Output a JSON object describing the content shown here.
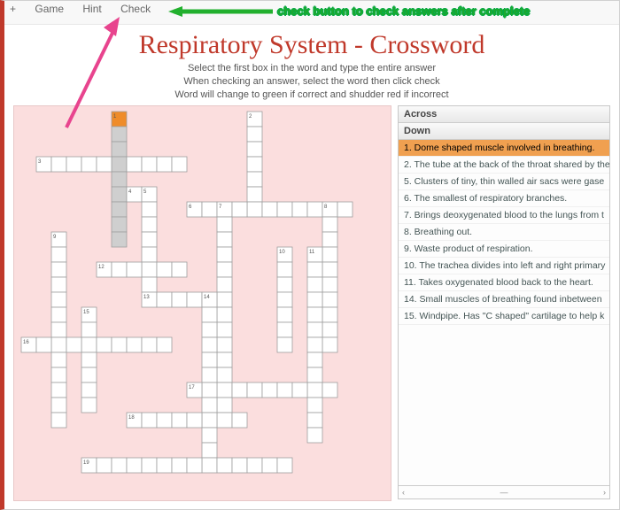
{
  "menu": {
    "plus": "+",
    "game": "Game",
    "hint": "Hint",
    "check": "Check"
  },
  "title": "Respiratory System - Crossword",
  "instructions": [
    "Select the first box in the word and type the entire answer",
    "When checking an answer, select the word then click check",
    "Word will change to green if correct and shudder red if incorrect"
  ],
  "annotation": "check button to check answers after complete",
  "clue_headers": {
    "across": "Across",
    "down": "Down"
  },
  "clues": [
    {
      "n": 1,
      "text": "Dome shaped muscle involved in breathing.",
      "selected": true
    },
    {
      "n": 2,
      "text": "The tube at the back of the throat shared by the"
    },
    {
      "n": 5,
      "text": "Clusters of tiny, thin walled air sacs were gase"
    },
    {
      "n": 6,
      "text": "The smallest of respiratory branches."
    },
    {
      "n": 7,
      "text": "Brings deoxygenated blood to the lungs from t"
    },
    {
      "n": 8,
      "text": "Breathing out."
    },
    {
      "n": 9,
      "text": "Waste product of respiration."
    },
    {
      "n": 10,
      "text": "The trachea divides into left and right primary"
    },
    {
      "n": 11,
      "text": "Takes oxygenated blood back to the heart."
    },
    {
      "n": 14,
      "text": "Small muscles of breathing found inbetween"
    },
    {
      "n": 15,
      "text": "Windpipe. Has \"C shaped\" cartilage to help k"
    }
  ],
  "grid": {
    "cell": 17,
    "colors": {
      "cell_fill": "#ffffff",
      "cell_stroke": "#9e9e9e",
      "cell_selected": "#ef8c2a",
      "cell_shaded": "#cfcfcf",
      "number_color": "#555555"
    },
    "entries": [
      {
        "n": 1,
        "r": 0,
        "c": 6,
        "dir": "D",
        "len": 9,
        "first_selected": true,
        "shaded": true
      },
      {
        "n": 2,
        "r": 0,
        "c": 15,
        "dir": "D",
        "len": 7
      },
      {
        "n": 3,
        "r": 3,
        "c": 1,
        "dir": "A",
        "len": 10
      },
      {
        "n": 4,
        "r": 5,
        "c": 7,
        "dir": "A",
        "len": 2
      },
      {
        "n": 5,
        "r": 5,
        "c": 8,
        "dir": "D",
        "len": 7
      },
      {
        "n": 6,
        "r": 6,
        "c": 11,
        "dir": "A",
        "len": 11
      },
      {
        "n": 7,
        "r": 6,
        "c": 13,
        "dir": "D",
        "len": 15
      },
      {
        "n": 8,
        "r": 6,
        "c": 20,
        "dir": "D",
        "len": 10
      },
      {
        "n": 9,
        "r": 8,
        "c": 2,
        "dir": "D",
        "len": 13
      },
      {
        "n": 10,
        "r": 9,
        "c": 17,
        "dir": "D",
        "len": 7
      },
      {
        "n": 11,
        "r": 9,
        "c": 19,
        "dir": "D",
        "len": 13
      },
      {
        "n": 12,
        "r": 10,
        "c": 5,
        "dir": "A",
        "len": 6
      },
      {
        "n": 13,
        "r": 12,
        "c": 8,
        "dir": "A",
        "len": 4
      },
      {
        "n": 14,
        "r": 12,
        "c": 12,
        "dir": "D",
        "len": 12
      },
      {
        "n": 15,
        "r": 13,
        "c": 4,
        "dir": "D",
        "len": 7
      },
      {
        "n": 16,
        "r": 15,
        "c": 0,
        "dir": "A",
        "len": 10
      },
      {
        "n": 17,
        "r": 18,
        "c": 11,
        "dir": "A",
        "len": 10
      },
      {
        "n": 18,
        "r": 20,
        "c": 7,
        "dir": "A",
        "len": 8
      },
      {
        "n": 19,
        "r": 23,
        "c": 4,
        "dir": "A",
        "len": 14
      }
    ]
  },
  "scroll": {
    "left": "‹",
    "right": "›",
    "mid": "—"
  },
  "anno_colors": {
    "green": "#22b02e",
    "pink": "#e8448e"
  }
}
